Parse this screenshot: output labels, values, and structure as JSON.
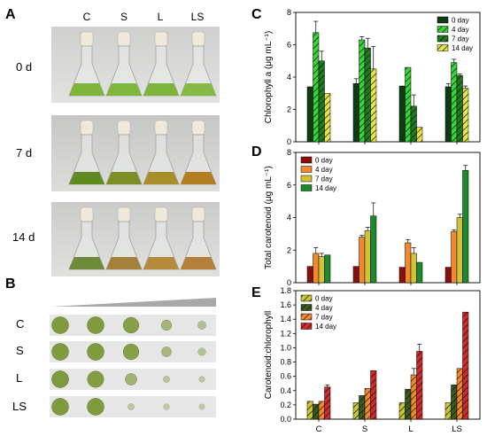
{
  "panels": {
    "A": {
      "letter": "A",
      "columns": [
        "C",
        "S",
        "L",
        "LS"
      ],
      "rows": [
        {
          "label": "0 d",
          "colors": [
            "#7fb63a",
            "#80b83c",
            "#7cb53a",
            "#84b944"
          ]
        },
        {
          "label": "7 d",
          "colors": [
            "#5e8a20",
            "#7d8e27",
            "#a78e2a",
            "#b27c23"
          ]
        },
        {
          "label": "14 d",
          "colors": [
            "#6e8a3a",
            "#a5803a",
            "#b58a3c",
            "#b3803a"
          ]
        }
      ]
    },
    "B": {
      "letter": "B",
      "rows": [
        {
          "label": "C",
          "spots": [
            1,
            1,
            0.9,
            0.45,
            0.25
          ]
        },
        {
          "label": "S",
          "spots": [
            1,
            1,
            0.9,
            0.4,
            0.2
          ]
        },
        {
          "label": "L",
          "spots": [
            1,
            0.95,
            0.55,
            0.1,
            0.05
          ]
        },
        {
          "label": "LS",
          "spots": [
            1,
            1,
            0.1,
            0.05,
            0.03
          ]
        }
      ]
    }
  },
  "chart_data": [
    {
      "panel": "C",
      "type": "bar",
      "ylabel": "Chlorophyll a (μg mL⁻¹)",
      "ylim": [
        0,
        8
      ],
      "yticks": [
        "0",
        "2",
        "4",
        "6",
        "8"
      ],
      "categories": [
        "C",
        "S",
        "L",
        "LS"
      ],
      "show_xticklabels": false,
      "legend_position": "top-right",
      "series": [
        {
          "name": "0 day",
          "color": "#0e3b12",
          "hatch": false,
          "values": [
            3.4,
            3.6,
            3.45,
            3.4
          ],
          "errors": [
            0,
            0.3,
            0,
            0.2
          ]
        },
        {
          "name": "4 day",
          "color": "#3ad43a",
          "hatch": true,
          "values": [
            6.75,
            6.3,
            4.6,
            4.9
          ],
          "errors": [
            0.7,
            0.2,
            0,
            0.2
          ]
        },
        {
          "name": "7 day",
          "color": "#207a20",
          "hatch": true,
          "values": [
            5.0,
            5.8,
            2.2,
            4.1
          ],
          "errors": [
            0.6,
            0.6,
            0.7,
            0.1
          ]
        },
        {
          "name": "14 day",
          "color": "#e6e64a",
          "hatch": true,
          "values": [
            3.0,
            4.5,
            0.9,
            3.3
          ],
          "errors": [
            0,
            1.4,
            0,
            0.15
          ]
        }
      ]
    },
    {
      "panel": "D",
      "type": "bar",
      "ylabel": "Total carotenoid (μg mL⁻¹)",
      "ylim": [
        0,
        8
      ],
      "yticks": [
        "0",
        "2",
        "4",
        "6",
        "8"
      ],
      "categories": [
        "C",
        "S",
        "L",
        "LS"
      ],
      "show_xticklabels": false,
      "legend_position": "top-left",
      "series": [
        {
          "name": "0 day",
          "color": "#8a1010",
          "hatch": false,
          "values": [
            1.0,
            1.0,
            0.95,
            0.95
          ],
          "errors": [
            0,
            0,
            0,
            0
          ]
        },
        {
          "name": "4 day",
          "color": "#f08a30",
          "hatch": false,
          "values": [
            1.8,
            2.8,
            2.45,
            3.15
          ],
          "errors": [
            0.35,
            0.1,
            0.2,
            0.1
          ]
        },
        {
          "name": "7 day",
          "color": "#d4c23a",
          "hatch": false,
          "values": [
            1.6,
            3.2,
            1.8,
            4.0
          ],
          "errors": [
            0.2,
            0.2,
            0.35,
            0.2
          ]
        },
        {
          "name": "14 day",
          "color": "#1c8a2a",
          "hatch": false,
          "values": [
            1.7,
            4.1,
            1.25,
            6.9
          ],
          "errors": [
            0,
            0.8,
            0,
            0.3
          ]
        }
      ]
    },
    {
      "panel": "E",
      "type": "bar",
      "ylabel": "Carotenoid:chlorophyll",
      "ylim": [
        0,
        1.8
      ],
      "yticks": [
        "0.0",
        "0.2",
        "0.4",
        "0.6",
        "0.8",
        "1.0",
        "1.2",
        "1.4",
        "1.6",
        "1.8"
      ],
      "categories": [
        "C",
        "S",
        "L",
        "LS"
      ],
      "show_xticklabels": true,
      "legend_position": "top-left",
      "series": [
        {
          "name": "0 day",
          "color": "#c8c830",
          "hatch": true,
          "values": [
            0.25,
            0.23,
            0.23,
            0.23
          ],
          "errors": [
            0,
            0,
            0,
            0
          ]
        },
        {
          "name": "4 day",
          "color": "#3a5a1a",
          "hatch": true,
          "values": [
            0.21,
            0.33,
            0.42,
            0.48
          ],
          "errors": [
            0,
            0,
            0,
            0
          ]
        },
        {
          "name": "7 day",
          "color": "#f08a30",
          "hatch": true,
          "values": [
            0.25,
            0.43,
            0.62,
            0.71
          ],
          "errors": [
            0,
            0,
            0.09,
            0
          ]
        },
        {
          "name": "14 day",
          "color": "#d02a2a",
          "hatch": true,
          "values": [
            0.45,
            0.68,
            0.95,
            1.5
          ],
          "errors": [
            0.03,
            0,
            0.1,
            0
          ]
        }
      ]
    }
  ]
}
